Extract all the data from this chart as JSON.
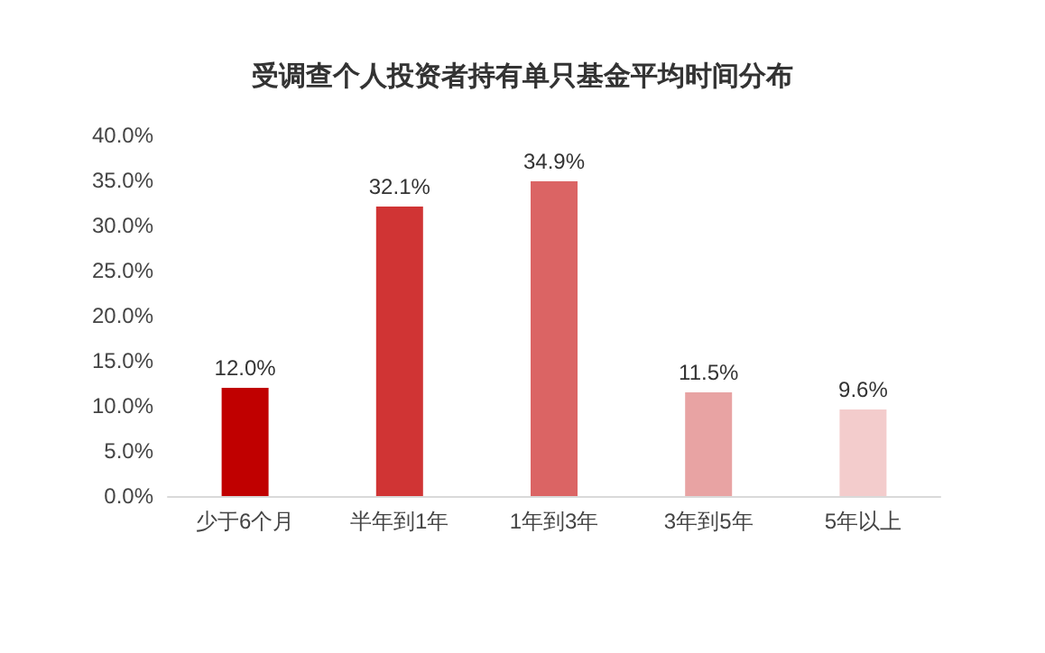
{
  "chart_data": {
    "type": "bar",
    "title": "受调查个人投资者持有单只基金平均时间分布",
    "categories": [
      "少于6个月",
      "半年到1年",
      "1年到3年",
      "3年到5年",
      "5年以上"
    ],
    "values": [
      12.0,
      32.1,
      34.9,
      11.5,
      9.6
    ],
    "value_labels": [
      "12.0%",
      "32.1%",
      "34.9%",
      "11.5%",
      "9.6%"
    ],
    "colors": [
      "#c00000",
      "#d03434",
      "#db6464",
      "#e8a3a3",
      "#f3cccc"
    ],
    "ylim": [
      0,
      40
    ],
    "yticks": [
      {
        "value": 0,
        "label": "0.0%"
      },
      {
        "value": 5,
        "label": "5.0%"
      },
      {
        "value": 10,
        "label": "10.0%"
      },
      {
        "value": 15,
        "label": "15.0%"
      },
      {
        "value": 20,
        "label": "20.0%"
      },
      {
        "value": 25,
        "label": "25.0%"
      },
      {
        "value": 30,
        "label": "30.0%"
      },
      {
        "value": 35,
        "label": "35.0%"
      },
      {
        "value": 40,
        "label": "40.0%"
      }
    ],
    "grid": false
  }
}
